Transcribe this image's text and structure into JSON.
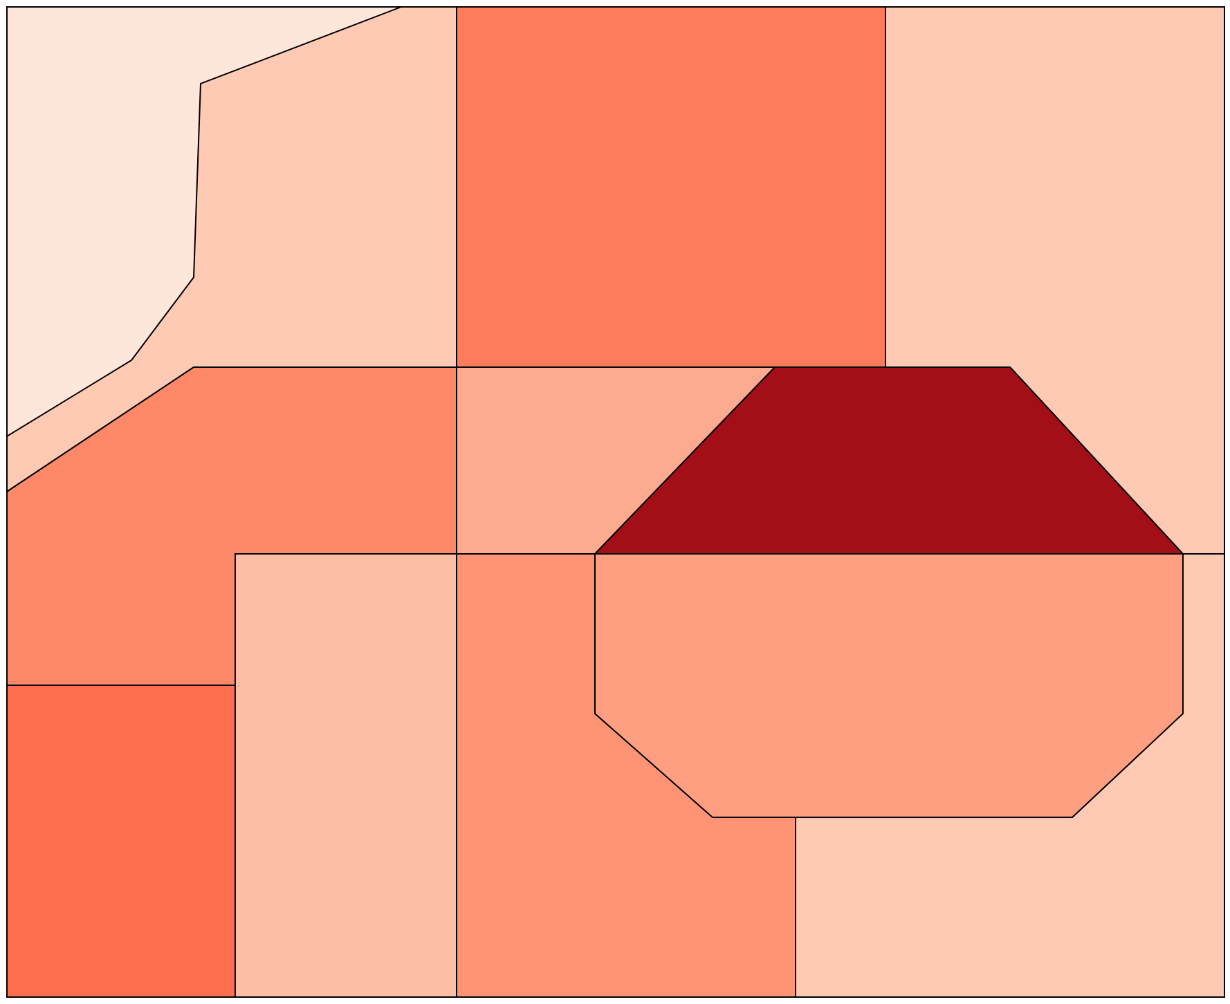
{
  "map": {
    "regions": [
      {
        "id": "region-top-left-light",
        "color": "#fee6da"
      },
      {
        "id": "region-top-left-band",
        "color": "#fecab4"
      },
      {
        "id": "region-top-center",
        "color": "#fe7b5c"
      },
      {
        "id": "region-right-column",
        "color": "#fecab4"
      },
      {
        "id": "region-middle-left",
        "color": "#fe8969"
      },
      {
        "id": "region-middle-center",
        "color": "#fcab8f"
      },
      {
        "id": "region-trapezoid",
        "color": "#a30f17"
      },
      {
        "id": "region-bottom-left",
        "color": "#fd6f4e"
      },
      {
        "id": "region-bottom-left-center",
        "color": "#fcbea5"
      },
      {
        "id": "region-bottom-center",
        "color": "#fe9474"
      },
      {
        "id": "region-octagon",
        "color": "#fe9f81"
      }
    ]
  }
}
